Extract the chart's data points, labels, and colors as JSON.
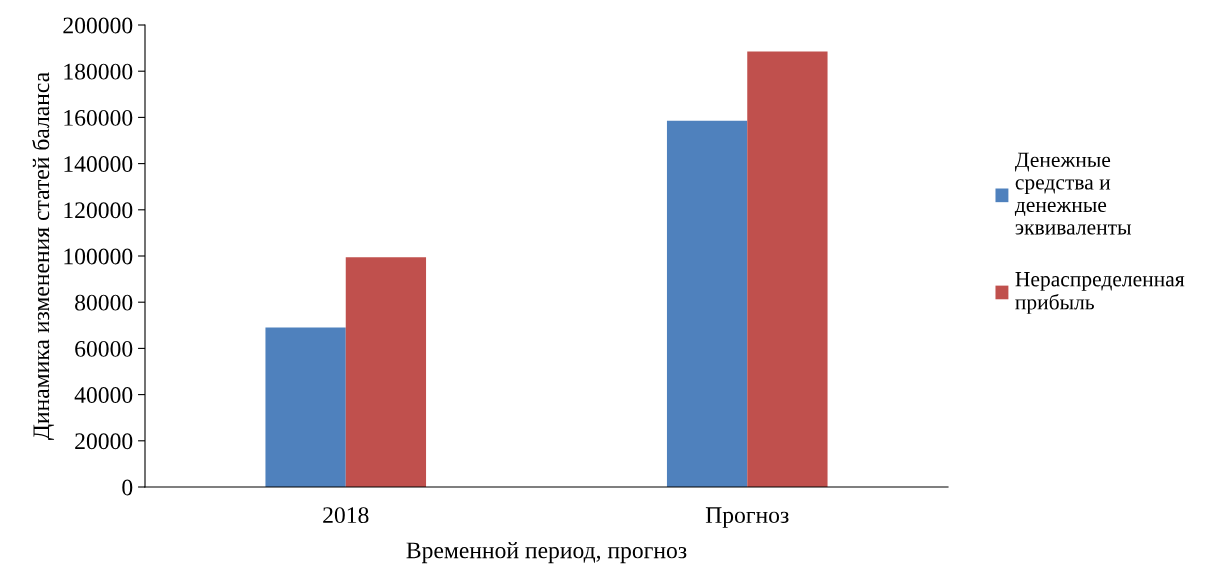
{
  "chart_data": {
    "type": "bar",
    "xlabel": "Временной период, прогноз",
    "ylabel": "Динамика изменения статей баланса",
    "categories": [
      "2018",
      "Прогноз"
    ],
    "series": [
      {
        "name": "Денежные средства и денежные эквиваленты",
        "color": "#4f81bd",
        "values": [
          69000,
          158500
        ]
      },
      {
        "name": "Нераспределенная прибыль",
        "color": "#c0504d",
        "values": [
          99500,
          188500
        ]
      }
    ],
    "ylim": [
      0,
      200000
    ],
    "yticks": [
      0,
      20000,
      40000,
      60000,
      80000,
      100000,
      120000,
      140000,
      160000,
      180000,
      200000
    ],
    "grid": false,
    "legend": "right"
  }
}
